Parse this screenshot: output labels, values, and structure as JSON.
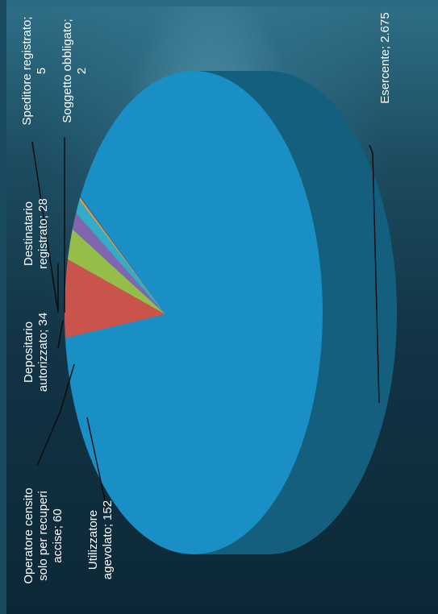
{
  "chart_data": {
    "type": "pie",
    "style": "3d",
    "orientation": "rotated 90° counter-clockwise",
    "slices": [
      {
        "label_lines": [
          "Esercente; 2.675"
        ],
        "label": "Esercente",
        "value": 2675,
        "color": "#1a8fc6"
      },
      {
        "label_lines": [
          "Utilizzatore",
          "agevolato; 152"
        ],
        "label": "Utilizzatore agevolato",
        "value": 152,
        "color": "#c8544c"
      },
      {
        "label_lines": [
          "Operatore censito",
          "solo per recuperi",
          "accise; 60"
        ],
        "label": "Operatore censito solo per recuperi accise",
        "value": 60,
        "color": "#95bd4a"
      },
      {
        "label_lines": [
          "Depositario",
          "autorizzato; 34"
        ],
        "label": "Depositario autorizzato",
        "value": 34,
        "color": "#8067ad"
      },
      {
        "label_lines": [
          "Destinatario",
          "registrato; 28"
        ],
        "label": "Destinatario registrato",
        "value": 28,
        "color": "#33acc8"
      },
      {
        "label_lines": [
          "Speditore registrato;",
          "5"
        ],
        "label": "Speditore registrato",
        "value": 5,
        "color": "#f09a3a"
      },
      {
        "label_lines": [
          "Soggetto obbligato;",
          "2"
        ],
        "label": "Soggetto obbligato",
        "value": 2,
        "color": "#2e5a8c"
      }
    ],
    "legend": "none",
    "data_labels": "category and value, with leader lines"
  }
}
